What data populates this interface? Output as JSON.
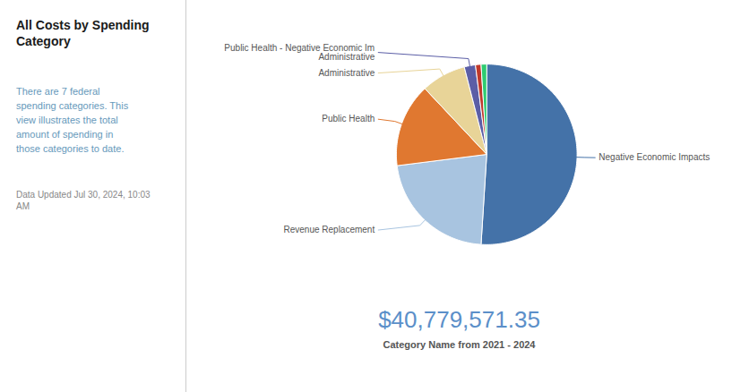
{
  "chart_data": {
    "type": "pie",
    "title": "All Costs by Spending\nCategory",
    "subtitle": "There are 7 federal\nspending categories. This\nview illustrates the total\namount of spending in\nthose categories to date.",
    "annotations": [
      "Data Updated Jul 30, 2024, 10:03\nAM",
      "$40,779,571.35",
      "Category Name from 2021 - 2024"
    ],
    "categories": [
      "Negative Economic Impacts",
      "Revenue Replacement",
      "Public Health",
      "Administrative",
      "Public Health - Negative Economic Im\nAdministrative",
      null,
      null
    ],
    "values": [
      51,
      22,
      15,
      8,
      2.0,
      1.0,
      1.0
    ],
    "colors": [
      "#4472a8",
      "#a8c4e0",
      "#e07830",
      "#e8d498",
      "#5b5ea6",
      "#c0392b",
      "#2ecc71"
    ]
  }
}
